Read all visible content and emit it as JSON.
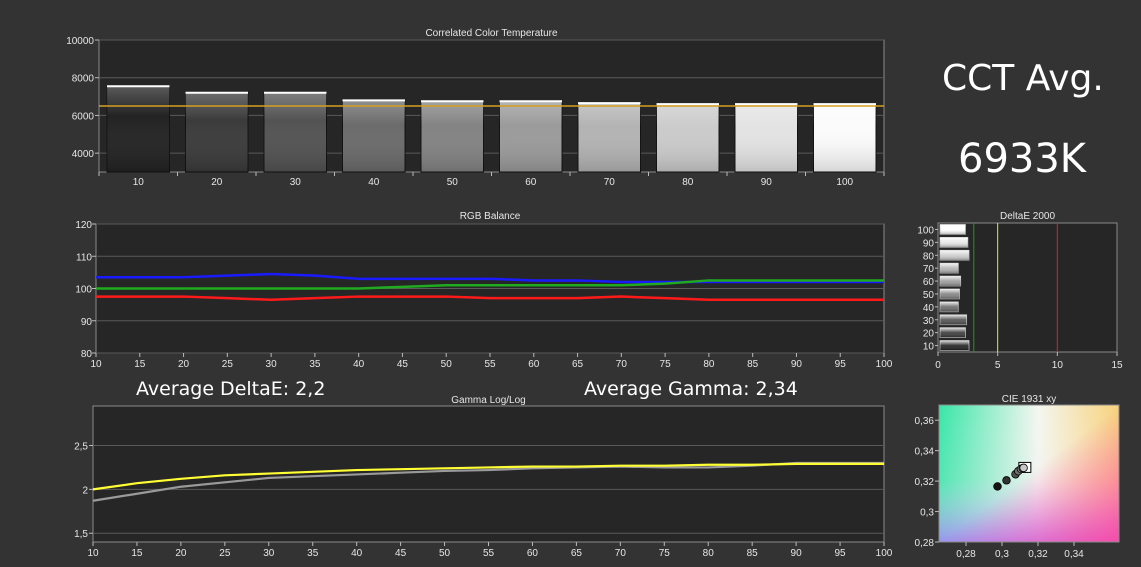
{
  "cct_avg": {
    "label": "CCT Avg.",
    "value": "6933K"
  },
  "average_delta_e": "Average DeltaE: 2,2",
  "average_gamma": "Average Gamma: 2,34",
  "chart_data": [
    {
      "type": "bar",
      "title": "Correlated Color Temperature",
      "categories": [
        "10",
        "20",
        "30",
        "40",
        "50",
        "60",
        "70",
        "80",
        "90",
        "100"
      ],
      "values": [
        7550,
        7200,
        7200,
        6800,
        6750,
        6750,
        6650,
        6600,
        6600,
        6600
      ],
      "reference": 6500,
      "ylim": [
        3000,
        10000
      ],
      "yticks": [
        4000,
        6000,
        8000,
        10000
      ],
      "grid": true,
      "colors": {
        "reference": "#d4a020",
        "bar_top": "#ffffff"
      }
    },
    {
      "type": "line",
      "title": "RGB Balance",
      "x": [
        10,
        15,
        20,
        25,
        30,
        35,
        40,
        45,
        50,
        55,
        60,
        65,
        70,
        75,
        80,
        85,
        90,
        95,
        100
      ],
      "series": [
        {
          "color": "#1a1aff",
          "values": [
            103.5,
            103.5,
            103.5,
            104,
            104.5,
            104,
            103,
            103,
            103,
            103,
            102.5,
            102.5,
            102,
            102,
            102,
            102,
            102,
            102,
            102
          ]
        },
        {
          "color": "#1faa1f",
          "values": [
            100,
            100,
            100,
            100,
            100,
            100,
            100,
            100.5,
            101,
            101,
            101,
            101,
            101,
            101.5,
            102.5,
            102.5,
            102.5,
            102.5,
            102.5
          ]
        },
        {
          "color": "#ff1a1a",
          "values": [
            97.5,
            97.5,
            97.5,
            97,
            96.5,
            97,
            97.5,
            97.5,
            97.5,
            97,
            97,
            97,
            97.5,
            97,
            96.5,
            96.5,
            96.5,
            96.5,
            96.5
          ]
        }
      ],
      "xlim": [
        10,
        100
      ],
      "ylim": [
        80,
        120
      ],
      "yticks": [
        80,
        90,
        100,
        110,
        120
      ],
      "grid": true
    },
    {
      "type": "bar",
      "title": "DeltaE 2000",
      "orientation": "horizontal",
      "categories": [
        "10",
        "20",
        "30",
        "40",
        "50",
        "60",
        "70",
        "80",
        "90",
        "100"
      ],
      "values": [
        2.6,
        2.3,
        2.4,
        1.7,
        1.8,
        1.9,
        1.7,
        2.6,
        2.5,
        2.3
      ],
      "reference_lines": [
        {
          "value": 3,
          "color": "#1f9a1f"
        },
        {
          "value": 5,
          "color": "#e6e633"
        },
        {
          "value": 10,
          "color": "#dd2222"
        }
      ],
      "xlim": [
        0,
        15
      ],
      "xticks": [
        0,
        5,
        10,
        15
      ]
    },
    {
      "type": "line",
      "title": "Gamma Log/Log",
      "x": [
        10,
        15,
        20,
        25,
        30,
        35,
        40,
        45,
        50,
        55,
        60,
        65,
        70,
        75,
        80,
        85,
        90,
        95,
        100
      ],
      "series": [
        {
          "color": "#ffff33",
          "values": [
            2.0,
            2.07,
            2.12,
            2.16,
            2.18,
            2.2,
            2.22,
            2.23,
            2.24,
            2.25,
            2.26,
            2.26,
            2.27,
            2.27,
            2.28,
            2.28,
            2.29,
            2.29,
            2.29
          ]
        },
        {
          "color": "#9a9a9a",
          "values": [
            1.87,
            1.95,
            2.03,
            2.08,
            2.13,
            2.15,
            2.17,
            2.19,
            2.21,
            2.22,
            2.24,
            2.25,
            2.26,
            2.25,
            2.25,
            2.27,
            2.3,
            2.3,
            2.3
          ]
        }
      ],
      "xlim": [
        10,
        100
      ],
      "ylim": [
        1.4,
        2.95
      ],
      "yticks": [
        "1,5",
        "2",
        "2,5"
      ],
      "grid": true
    },
    {
      "type": "scatter",
      "title": "CIE 1931 xy",
      "xlim": [
        0.265,
        0.365
      ],
      "ylim": [
        0.28,
        0.37
      ],
      "xticks": [
        "0,28",
        "0,3",
        "0,32",
        "0,34"
      ],
      "yticks": [
        "0,28",
        "0,3",
        "0,32",
        "0,34",
        "0,36"
      ],
      "target": {
        "x": 0.3127,
        "y": 0.329
      },
      "points": [
        {
          "x": 0.2975,
          "y": 0.3165
        },
        {
          "x": 0.3025,
          "y": 0.3205
        },
        {
          "x": 0.3075,
          "y": 0.3245
        },
        {
          "x": 0.309,
          "y": 0.3265
        },
        {
          "x": 0.3105,
          "y": 0.328
        },
        {
          "x": 0.3115,
          "y": 0.3285
        },
        {
          "x": 0.312,
          "y": 0.3287
        }
      ]
    }
  ]
}
